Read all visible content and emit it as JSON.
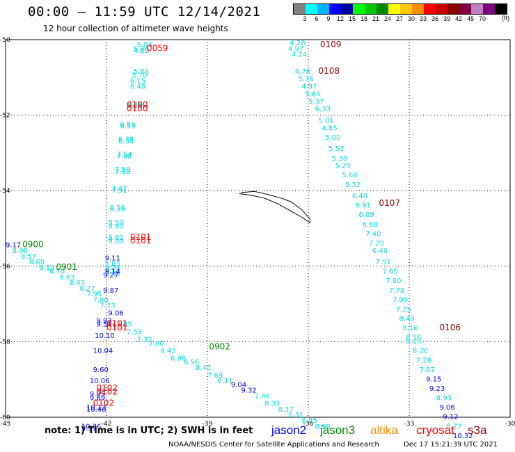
{
  "header": {
    "title": "00:00 – 11:59 UTC 12/14/2021",
    "subtitle": "12 hour collection of altimeter wave heights"
  },
  "legend": {
    "colors": [
      "#808080",
      "#00ffff",
      "#00b4ff",
      "#0000ff",
      "#0000a0",
      "#00ff00",
      "#00c800",
      "#008c00",
      "#ffff00",
      "#ffc800",
      "#ff8c00",
      "#ff0000",
      "#c80000",
      "#8c0000",
      "#800040",
      "#c080c0",
      "#800080",
      "#000000"
    ],
    "labels": [
      "3",
      "6",
      "9",
      "12",
      "15",
      "18",
      "21",
      "24",
      "27",
      "30",
      "33",
      "36",
      "39",
      "42",
      "45",
      "70"
    ],
    "unit": "(ft)"
  },
  "footer": {
    "note": "note: 1) Time is in UTC; 2) SWH is in feet",
    "satellites": [
      {
        "name": "jason2",
        "color": "#0000ff"
      },
      {
        "name": "jason3",
        "color": "#008c00"
      },
      {
        "name": "altika",
        "color": "#ff8c00"
      },
      {
        "name": "cryosat",
        "color": "#ff0000"
      },
      {
        "name": "s3a",
        "color": "#8c0000"
      }
    ],
    "credit": "NOAA/NESDIS Center for Satellite Applications and Research",
    "stamp": "Dec 17 15:21:39 UTC 2021"
  },
  "chart_data": {
    "type": "scatter",
    "title": "00:00 – 11:59 UTC 12/14/2021",
    "subtitle": "12 hour collection of altimeter wave heights",
    "xlabel": "",
    "ylabel": "",
    "xlim": [
      -45,
      -30
    ],
    "ylim": [
      -60,
      -50
    ],
    "x_ticks": [
      "-45",
      "-42",
      "-39",
      "-36",
      "-33",
      "-30"
    ],
    "y_ticks": [
      "-50",
      "-52",
      "-54",
      "-56",
      "-58",
      "-60"
    ],
    "grid": true,
    "colors": {
      "light": "#00dcdc",
      "blue": "#0000ff",
      "green": "#008c00",
      "red": "#ff0000",
      "dark": "#8c0000"
    },
    "time_labels": [
      {
        "text": "0059",
        "x": -40.8,
        "y": -50.3,
        "color": "red"
      },
      {
        "text": "0100",
        "x": -41.4,
        "y": -51.8,
        "color": "red"
      },
      {
        "text": "0100",
        "x": -41.4,
        "y": -51.9,
        "color": "red"
      },
      {
        "text": "0101",
        "x": -41.3,
        "y": -55.3,
        "color": "red"
      },
      {
        "text": "0101",
        "x": -41.3,
        "y": -55.4,
        "color": "red"
      },
      {
        "text": "0101",
        "x": -42.0,
        "y": -57.6,
        "color": "red"
      },
      {
        "text": "0101",
        "x": -42.0,
        "y": -57.7,
        "color": "red"
      },
      {
        "text": "0102",
        "x": -42.3,
        "y": -59.3,
        "color": "red"
      },
      {
        "text": "0102",
        "x": -42.3,
        "y": -59.4,
        "color": "red"
      },
      {
        "text": "0102",
        "x": -42.4,
        "y": -59.7,
        "color": "red"
      },
      {
        "text": "0900",
        "x": -44.5,
        "y": -55.5,
        "color": "green"
      },
      {
        "text": "0901",
        "x": -43.5,
        "y": -56.1,
        "color": "green"
      },
      {
        "text": "0902",
        "x": -38.95,
        "y": -58.2,
        "color": "green"
      },
      {
        "text": "0109",
        "x": -35.65,
        "y": -50.2,
        "color": "dark"
      },
      {
        "text": "0108",
        "x": -35.7,
        "y": -50.9,
        "color": "dark"
      },
      {
        "text": "0107",
        "x": -33.9,
        "y": -54.4,
        "color": "dark"
      },
      {
        "text": "0106",
        "x": -32.1,
        "y": -57.7,
        "color": "dark"
      }
    ],
    "series": [
      {
        "points": [
          [
            -41.1,
            -50.2,
            "5.04",
            "light"
          ],
          [
            -41.2,
            -50.3,
            "5.24",
            "light"
          ],
          [
            -41.2,
            -50.35,
            "4.89",
            "light"
          ],
          [
            -41.2,
            -50.9,
            "5.84",
            "light"
          ],
          [
            -41.25,
            -51.0,
            "5.70",
            "light"
          ],
          [
            -41.3,
            -51.15,
            "6.15",
            "light"
          ],
          [
            -41.3,
            -51.3,
            "6.48",
            "light"
          ],
          [
            -41.4,
            -51.8,
            "6.38",
            "light"
          ],
          [
            -41.4,
            -51.82,
            "6.27",
            "light"
          ],
          [
            -41.6,
            -52.3,
            "6.56",
            "light"
          ],
          [
            -41.6,
            -52.35,
            "6.53",
            "light"
          ],
          [
            -41.65,
            -52.7,
            "6.38",
            "light"
          ],
          [
            -41.65,
            -52.75,
            "6.34",
            "light"
          ],
          [
            -41.7,
            -53.1,
            "7.54",
            "light"
          ],
          [
            -41.7,
            -53.15,
            "7.48",
            "light"
          ],
          [
            -41.75,
            -53.5,
            "7.50",
            "light"
          ],
          [
            -41.75,
            -53.55,
            "7.88",
            "light"
          ],
          [
            -41.85,
            -54.0,
            "7.47",
            "light"
          ],
          [
            -41.85,
            -54.05,
            "7.91",
            "light"
          ],
          [
            -41.9,
            -54.5,
            "8.56",
            "light"
          ],
          [
            -41.9,
            -54.55,
            "8.36",
            "light"
          ],
          [
            -41.95,
            -54.9,
            "8.50",
            "light"
          ],
          [
            -41.95,
            -55.0,
            "8.80",
            "light"
          ],
          [
            -41.95,
            -55.3,
            "8.62",
            "light"
          ],
          [
            -41.95,
            -55.4,
            "9.00",
            "light"
          ],
          [
            -42.05,
            -56.0,
            "7.83",
            "light"
          ],
          [
            -42.05,
            -56.1,
            "9.24",
            "light"
          ],
          [
            -42.05,
            -56.25,
            "9.33",
            "light"
          ]
        ]
      },
      {
        "points": [
          [
            -42.05,
            -55.85,
            "9.11",
            "blue"
          ],
          [
            -42.05,
            -56.2,
            "9.14",
            "blue"
          ],
          [
            -42.1,
            -56.3,
            "9.27",
            "blue"
          ],
          [
            -42.1,
            -56.7,
            "9.87",
            "blue"
          ],
          [
            -42.3,
            -57.5,
            "9.93",
            "blue"
          ],
          [
            -42.3,
            -57.6,
            "9.51",
            "blue"
          ],
          [
            -42.35,
            -57.9,
            "10.10",
            "blue"
          ],
          [
            -42.4,
            -58.3,
            "10.04",
            "blue"
          ],
          [
            -42.4,
            -58.8,
            "9.60",
            "blue"
          ],
          [
            -42.5,
            -59.1,
            "10.06",
            "blue"
          ],
          [
            -42.5,
            -59.45,
            "9.85",
            "blue"
          ],
          [
            -42.5,
            -59.55,
            "9.89",
            "blue"
          ],
          [
            -42.6,
            -59.8,
            "10.13",
            "blue"
          ],
          [
            -42.6,
            -59.85,
            "10.48",
            "blue"
          ],
          [
            -42.75,
            -60.3,
            "10.36",
            "blue"
          ],
          [
            -42.75,
            -60.35,
            "9.97",
            "blue"
          ]
        ]
      },
      {
        "points": [
          [
            -45.0,
            -55.5,
            "9.17",
            "blue"
          ],
          [
            -44.8,
            -55.65,
            "8.98",
            "light"
          ],
          [
            -44.55,
            -55.8,
            "8.57",
            "light"
          ],
          [
            -44.3,
            -55.95,
            "8.60",
            "light"
          ],
          [
            -44.0,
            -56.1,
            "8.14",
            "light"
          ],
          [
            -43.7,
            -56.2,
            "8.70",
            "light"
          ],
          [
            -43.4,
            -56.35,
            "8.63",
            "light"
          ],
          [
            -43.1,
            -56.5,
            "8.63",
            "light"
          ],
          [
            -42.8,
            -56.65,
            "8.27",
            "light"
          ],
          [
            -42.6,
            -56.8,
            "7.95",
            "light"
          ],
          [
            -42.4,
            -56.95,
            "7.80",
            "light"
          ],
          [
            -42.2,
            -57.1,
            "7.73",
            "light"
          ],
          [
            -41.95,
            -57.3,
            "9.06",
            "blue"
          ],
          [
            -41.7,
            -57.6,
            "7.85",
            "light"
          ],
          [
            -41.4,
            -57.8,
            "7.53",
            "light"
          ],
          [
            -41.1,
            -58.0,
            "7.32",
            "light"
          ],
          [
            -40.75,
            -58.1,
            "7.80",
            "light"
          ],
          [
            -40.4,
            -58.3,
            "8.43",
            "light"
          ],
          [
            -40.1,
            -58.5,
            "6.98",
            "light"
          ],
          [
            -39.7,
            -58.6,
            "8.56",
            "light"
          ],
          [
            -39.35,
            -58.75,
            "8.45",
            "light"
          ],
          [
            -39.0,
            -58.95,
            "7.69",
            "light"
          ],
          [
            -38.7,
            -59.1,
            "8.11",
            "light"
          ],
          [
            -38.3,
            -59.2,
            "9.04",
            "blue"
          ],
          [
            -38.0,
            -59.35,
            "9.32",
            "blue"
          ],
          [
            -37.6,
            -59.5,
            "7.46",
            "light"
          ],
          [
            -37.3,
            -59.7,
            "8.33",
            "light"
          ],
          [
            -36.9,
            -59.85,
            "8.37",
            "light"
          ],
          [
            -36.6,
            -60.0,
            "8.31",
            "light"
          ],
          [
            -36.2,
            -60.15,
            "8.85",
            "light"
          ],
          [
            -35.8,
            -60.3,
            "8.98",
            "light"
          ]
        ]
      },
      {
        "points": [
          [
            -36.55,
            -50.15,
            "4.28",
            "light"
          ],
          [
            -36.6,
            -50.3,
            "4.97",
            "light"
          ],
          [
            -36.5,
            -50.45,
            "4.24",
            "light"
          ],
          [
            -36.4,
            -50.9,
            "4.78",
            "light"
          ],
          [
            -36.3,
            -51.1,
            "5.76",
            "light"
          ],
          [
            -36.2,
            -51.3,
            "4.97",
            "light"
          ],
          [
            -36.1,
            -51.5,
            "5.64",
            "light"
          ],
          [
            -36.0,
            -51.7,
            "5.37",
            "light"
          ],
          [
            -35.8,
            -51.9,
            "6.33",
            "light"
          ],
          [
            -35.7,
            -52.2,
            "5.01",
            "light"
          ],
          [
            -35.6,
            -52.4,
            "4.85",
            "light"
          ],
          [
            -35.5,
            -52.65,
            "5.00",
            "light"
          ],
          [
            -35.4,
            -52.95,
            "5.53",
            "light"
          ],
          [
            -35.3,
            -53.2,
            "5.38",
            "light"
          ],
          [
            -35.2,
            -53.4,
            "5.29",
            "light"
          ],
          [
            -35.0,
            -53.65,
            "5.68",
            "light"
          ],
          [
            -34.9,
            -53.9,
            "5.52",
            "light"
          ],
          [
            -34.7,
            -54.2,
            "6.40",
            "light"
          ],
          [
            -34.6,
            -54.45,
            "6.91",
            "light"
          ],
          [
            -34.5,
            -54.7,
            "6.09",
            "light"
          ],
          [
            -34.4,
            -54.95,
            "6.68",
            "light"
          ],
          [
            -34.3,
            -55.2,
            "7.40",
            "light"
          ],
          [
            -34.2,
            -55.45,
            "7.20",
            "light"
          ],
          [
            -34.1,
            -55.65,
            "6.40",
            "light"
          ],
          [
            -34.0,
            -55.95,
            "7.51",
            "light"
          ],
          [
            -33.8,
            -56.2,
            "7.65",
            "light"
          ],
          [
            -33.7,
            -56.45,
            "7.80",
            "light"
          ],
          [
            -33.6,
            -56.7,
            "7.78",
            "light"
          ],
          [
            -33.5,
            -56.95,
            "7.09",
            "light"
          ],
          [
            -33.4,
            -57.2,
            "7.25",
            "light"
          ],
          [
            -33.3,
            -57.45,
            "8.48",
            "light"
          ],
          [
            -33.2,
            -57.7,
            "8.16",
            "light"
          ],
          [
            -33.1,
            -57.95,
            "8.56",
            "light"
          ],
          [
            -33.1,
            -58.05,
            "8.10",
            "light"
          ],
          [
            -32.9,
            -58.3,
            "8.20",
            "light"
          ],
          [
            -32.8,
            -58.55,
            "7.28",
            "light"
          ],
          [
            -32.7,
            -58.8,
            "7.87",
            "light"
          ],
          [
            -32.5,
            -59.05,
            "9.15",
            "blue"
          ],
          [
            -32.4,
            -59.3,
            "9.23",
            "blue"
          ],
          [
            -32.2,
            -59.55,
            "8.93",
            "light"
          ],
          [
            -32.1,
            -59.8,
            "9.06",
            "blue"
          ],
          [
            -32.0,
            -60.05,
            "9.12",
            "blue"
          ],
          [
            -31.9,
            -60.3,
            "8.77",
            "light"
          ],
          [
            -31.7,
            -60.55,
            "10.32",
            "blue"
          ]
        ]
      }
    ]
  }
}
